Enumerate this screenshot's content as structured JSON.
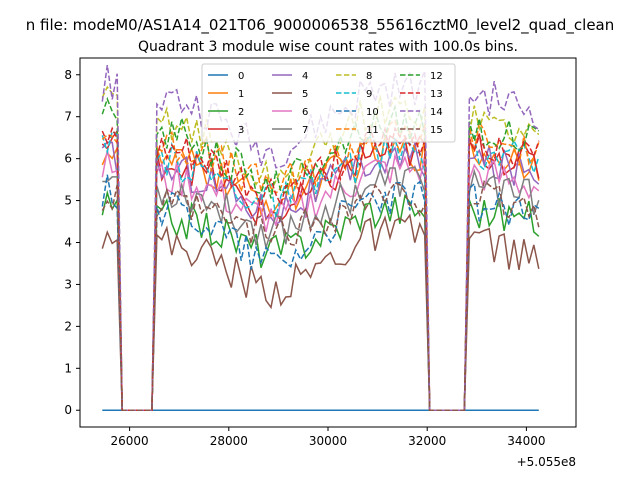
{
  "chart_data": {
    "type": "line",
    "suptitle": "n file: modeM0/AS1A14_021T06_9000006538_55616cztM0_level2_quad_clean",
    "title": "Quadrant 3 module wise count rates with 100.0s bins.",
    "xlabel": "",
    "ylabel": "",
    "x_offset_label": "+5.055e8",
    "xlim": [
      25000,
      35000
    ],
    "ylim": [
      -0.4,
      8.4
    ],
    "x_ticks": [
      26000,
      28000,
      30000,
      32000,
      34000
    ],
    "x_tick_labels": [
      "26000",
      "28000",
      "30000",
      "32000",
      "34000"
    ],
    "y_ticks": [
      0,
      1,
      2,
      3,
      4,
      5,
      6,
      7,
      8
    ],
    "y_tick_labels": [
      "0",
      "1",
      "2",
      "3",
      "4",
      "5",
      "6",
      "7",
      "8"
    ],
    "legend_position": "upper-center",
    "segments": [
      [
        25450,
        25850
      ],
      [
        26650,
        31950
      ],
      [
        32800,
        34300
      ]
    ],
    "gaps": [
      [
        25850,
        26500
      ],
      [
        32000,
        32800
      ]
    ],
    "series": [
      {
        "name": "0",
        "color": "#1f77b4",
        "style": "solid",
        "flat": 0
      },
      {
        "name": "1",
        "color": "#ff7f0e",
        "style": "solid",
        "levels": [
          6.2,
          5.6,
          6.2,
          5.9
        ]
      },
      {
        "name": "2",
        "color": "#2ca02c",
        "style": "solid",
        "levels": [
          4.8,
          4.3,
          4.8,
          4.5
        ]
      },
      {
        "name": "3",
        "color": "#d62728",
        "style": "solid",
        "levels": [
          6.3,
          5.5,
          6.3,
          5.8
        ]
      },
      {
        "name": "4",
        "color": "#9467bd",
        "style": "solid",
        "levels": [
          6.0,
          5.4,
          6.0,
          5.6
        ]
      },
      {
        "name": "5",
        "color": "#8c564b",
        "style": "solid",
        "levels": [
          4.3,
          3.6,
          4.2,
          3.5
        ]
      },
      {
        "name": "6",
        "color": "#e377c2",
        "style": "solid",
        "levels": [
          5.8,
          5.2,
          5.7,
          5.3
        ]
      },
      {
        "name": "7",
        "color": "#7f7f7f",
        "style": "solid",
        "levels": [
          5.5,
          4.9,
          5.5,
          5.0
        ]
      },
      {
        "name": "8",
        "color": "#bcbd22",
        "style": "dashed",
        "levels": [
          7.3,
          6.4,
          7.0,
          6.5
        ]
      },
      {
        "name": "9",
        "color": "#17becf",
        "style": "dashed",
        "levels": [
          6.2,
          5.6,
          6.2,
          5.9
        ]
      },
      {
        "name": "10",
        "color": "#1f77b4",
        "style": "dashed",
        "levels": [
          5.2,
          4.4,
          5.0,
          4.6
        ]
      },
      {
        "name": "11",
        "color": "#ff7f0e",
        "style": "dashed",
        "levels": [
          6.6,
          6.0,
          6.6,
          6.1
        ]
      },
      {
        "name": "12",
        "color": "#2ca02c",
        "style": "dashed",
        "levels": [
          7.0,
          6.2,
          6.8,
          6.3
        ]
      },
      {
        "name": "13",
        "color": "#d62728",
        "style": "dashed",
        "levels": [
          6.4,
          5.8,
          6.5,
          6.0
        ]
      },
      {
        "name": "14",
        "color": "#9467bd",
        "style": "dashed",
        "levels": [
          7.8,
          7.0,
          7.6,
          7.1
        ]
      },
      {
        "name": "15",
        "color": "#8c564b",
        "style": "dashed",
        "levels": [
          5.0,
          4.6,
          5.1,
          4.7
        ]
      }
    ]
  }
}
